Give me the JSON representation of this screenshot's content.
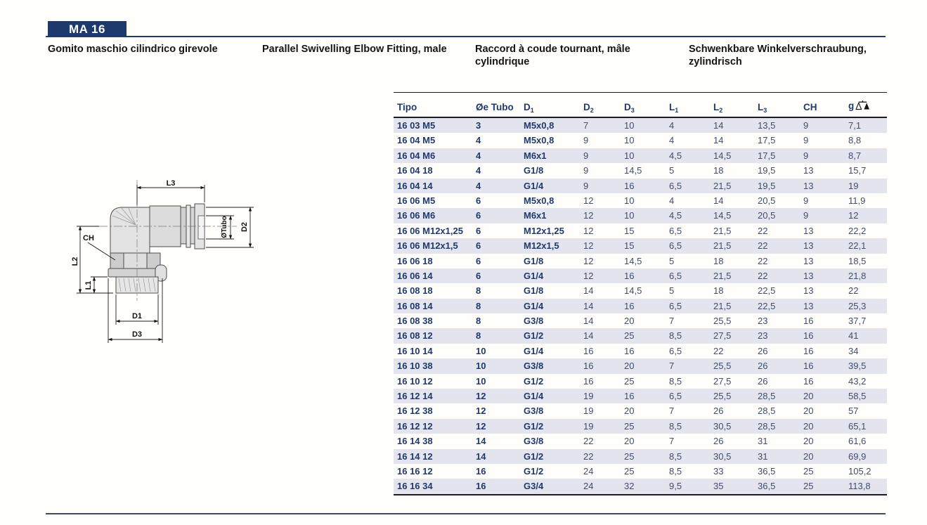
{
  "page": {
    "code": "MA 16",
    "titles": {
      "it": "Gomito maschio cilindrico girevole",
      "en": "Parallel Swivelling Elbow Fitting, male",
      "fr": "Raccord à coude tournant, mâle cylindrique",
      "de": "Schwenkbare Winkelverschraubung, zylindrisch"
    },
    "colors": {
      "navy": "#1e3a6d",
      "row_shade": "#e4e4ee",
      "data_text": "#3f4e6d",
      "rule_dark": "#1b1b24"
    }
  },
  "drawing": {
    "labels": {
      "l3": "L3",
      "otubo": "ØTubo",
      "d2": "D2",
      "ch": "CH",
      "l2": "L2",
      "l1": "L1",
      "d1": "D1",
      "d3": "D3"
    }
  },
  "table": {
    "headers": [
      {
        "text": "Tipo"
      },
      {
        "text": "Øe Tubo"
      },
      {
        "text": "D",
        "sub": "1"
      },
      {
        "text": "D",
        "sub": "2"
      },
      {
        "text": "D",
        "sub": "3"
      },
      {
        "text": "L",
        "sub": "1"
      },
      {
        "text": "L",
        "sub": "2"
      },
      {
        "text": "L",
        "sub": "3"
      },
      {
        "text": "CH"
      },
      {
        "text": "g",
        "icon": "scale-icon"
      }
    ],
    "rows": [
      [
        "16 03 M5",
        "3",
        "M5x0,8",
        "7",
        "10",
        "4",
        "14",
        "13,5",
        "9",
        "7,1"
      ],
      [
        "16 04 M5",
        "4",
        "M5x0,8",
        "9",
        "10",
        "4",
        "14",
        "17,5",
        "9",
        "8,8"
      ],
      [
        "16 04 M6",
        "4",
        "M6x1",
        "9",
        "10",
        "4,5",
        "14,5",
        "17,5",
        "9",
        "8,7"
      ],
      [
        "16 04 18",
        "4",
        "G1/8",
        "9",
        "14,5",
        "5",
        "18",
        "19,5",
        "13",
        "15,7"
      ],
      [
        "16 04 14",
        "4",
        "G1/4",
        "9",
        "16",
        "6,5",
        "21,5",
        "19,5",
        "13",
        "19"
      ],
      [
        "16 06 M5",
        "6",
        "M5x0,8",
        "12",
        "10",
        "4",
        "14",
        "20,5",
        "9",
        "11,9"
      ],
      [
        "16 06 M6",
        "6",
        "M6x1",
        "12",
        "10",
        "4,5",
        "14,5",
        "20,5",
        "9",
        "12"
      ],
      [
        "16 06 M12x1,25",
        "6",
        "M12x1,25",
        "12",
        "15",
        "6,5",
        "21,5",
        "22",
        "13",
        "22,2"
      ],
      [
        "16 06 M12x1,5",
        "6",
        "M12x1,5",
        "12",
        "15",
        "6,5",
        "21,5",
        "22",
        "13",
        "22,1"
      ],
      [
        "16 06 18",
        "6",
        "G1/8",
        "12",
        "14,5",
        "5",
        "18",
        "22",
        "13",
        "18,5"
      ],
      [
        "16 06 14",
        "6",
        "G1/4",
        "12",
        "16",
        "6,5",
        "21,5",
        "22",
        "13",
        "21,8"
      ],
      [
        "16 08 18",
        "8",
        "G1/8",
        "14",
        "14,5",
        "5",
        "18",
        "22,5",
        "13",
        "22"
      ],
      [
        "16 08 14",
        "8",
        "G1/4",
        "14",
        "16",
        "6,5",
        "21,5",
        "22,5",
        "13",
        "25,3"
      ],
      [
        "16 08 38",
        "8",
        "G3/8",
        "14",
        "20",
        "7",
        "25,5",
        "23",
        "16",
        "37,7"
      ],
      [
        "16 08 12",
        "8",
        "G1/2",
        "14",
        "25",
        "8,5",
        "27,5",
        "23",
        "16",
        "41"
      ],
      [
        "16 10 14",
        "10",
        "G1/4",
        "16",
        "16",
        "6,5",
        "22",
        "26",
        "16",
        "34"
      ],
      [
        "16 10 38",
        "10",
        "G3/8",
        "16",
        "20",
        "7",
        "25,5",
        "26",
        "16",
        "39,5"
      ],
      [
        "16 10 12",
        "10",
        "G1/2",
        "16",
        "25",
        "8,5",
        "27,5",
        "26",
        "16",
        "43,2"
      ],
      [
        "16 12 14",
        "12",
        "G1/4",
        "19",
        "16",
        "6,5",
        "25,5",
        "28,5",
        "20",
        "58,5"
      ],
      [
        "16 12 38",
        "12",
        "G3/8",
        "19",
        "20",
        "7",
        "26",
        "28,5",
        "20",
        "57"
      ],
      [
        "16 12 12",
        "12",
        "G1/2",
        "19",
        "25",
        "8,5",
        "30,5",
        "28,5",
        "20",
        "65,1"
      ],
      [
        "16 14 38",
        "14",
        "G3/8",
        "22",
        "20",
        "7",
        "26",
        "31",
        "20",
        "61,6"
      ],
      [
        "16 14 12",
        "14",
        "G1/2",
        "22",
        "25",
        "8,5",
        "30,5",
        "31",
        "20",
        "69,9"
      ],
      [
        "16 16 12",
        "16",
        "G1/2",
        "24",
        "25",
        "8,5",
        "33",
        "36,5",
        "25",
        "105,2"
      ],
      [
        "16 16 34",
        "16",
        "G3/4",
        "24",
        "32",
        "9,5",
        "35",
        "36,5",
        "25",
        "113,8"
      ]
    ]
  }
}
